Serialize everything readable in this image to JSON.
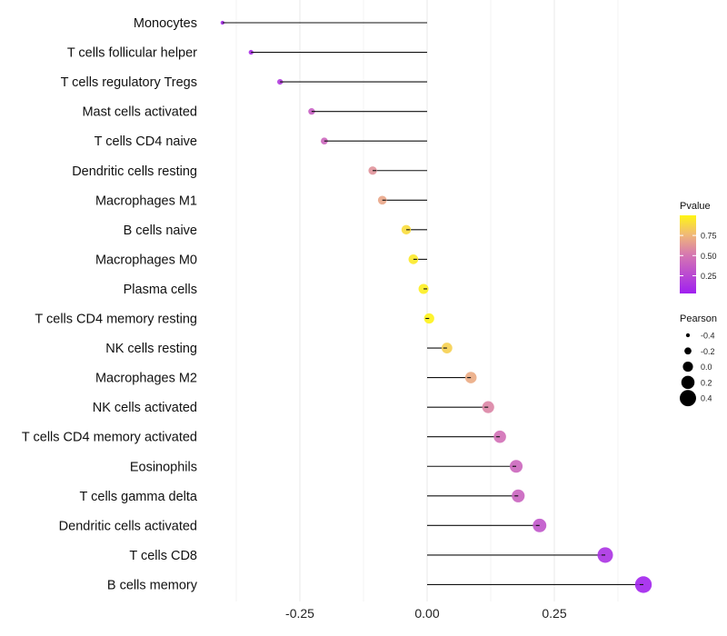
{
  "chart_data": {
    "type": "lollipop",
    "title": "",
    "xlabel": "",
    "ylabel": "",
    "xlim": [
      -0.43,
      0.45
    ],
    "x_ticks": [
      -0.25,
      0.0,
      0.25
    ],
    "x_tick_labels": [
      "-0.25",
      "0.00",
      "0.25"
    ],
    "grid": true,
    "categories": [
      "Monocytes",
      "T cells follicular helper",
      "T cells regulatory  Tregs",
      "Mast cells activated",
      "T cells CD4 naive",
      "Dendritic cells resting",
      "Macrophages M1",
      "B cells naive",
      "Macrophages M0",
      "Plasma cells",
      "T cells CD4 memory resting",
      "NK cells resting",
      "Macrophages M2",
      "NK cells activated",
      "T cells CD4 memory activated",
      "Eosinophils",
      "T cells gamma delta",
      "Dendritic cells activated",
      "T cells CD8",
      "B cells memory"
    ],
    "pearson": [
      -0.402,
      -0.346,
      -0.289,
      -0.227,
      -0.202,
      -0.107,
      -0.088,
      -0.041,
      -0.027,
      -0.007,
      0.004,
      0.039,
      0.086,
      0.12,
      0.143,
      0.175,
      0.179,
      0.221,
      0.35,
      0.425
    ],
    "pvalue": [
      0.05,
      0.08,
      0.15,
      0.35,
      0.4,
      0.6,
      0.68,
      0.9,
      0.95,
      0.97,
      0.99,
      0.85,
      0.7,
      0.55,
      0.45,
      0.4,
      0.38,
      0.3,
      0.1,
      0.02
    ],
    "legend_color": {
      "title": "Pvalue",
      "ticks": [
        "0.75",
        "0.50",
        "0.25"
      ],
      "tick_values": [
        0.75,
        0.5,
        0.25
      ],
      "low_color": "#A020F0",
      "high_color": "#FFFF00",
      "placement": "right"
    },
    "legend_size": {
      "title": "Pearson",
      "labels": [
        "-0.4",
        "-0.2",
        "0.0",
        "0.2",
        "0.4"
      ],
      "values": [
        -0.4,
        -0.2,
        0.0,
        0.2,
        0.4
      ],
      "placement": "right"
    }
  }
}
